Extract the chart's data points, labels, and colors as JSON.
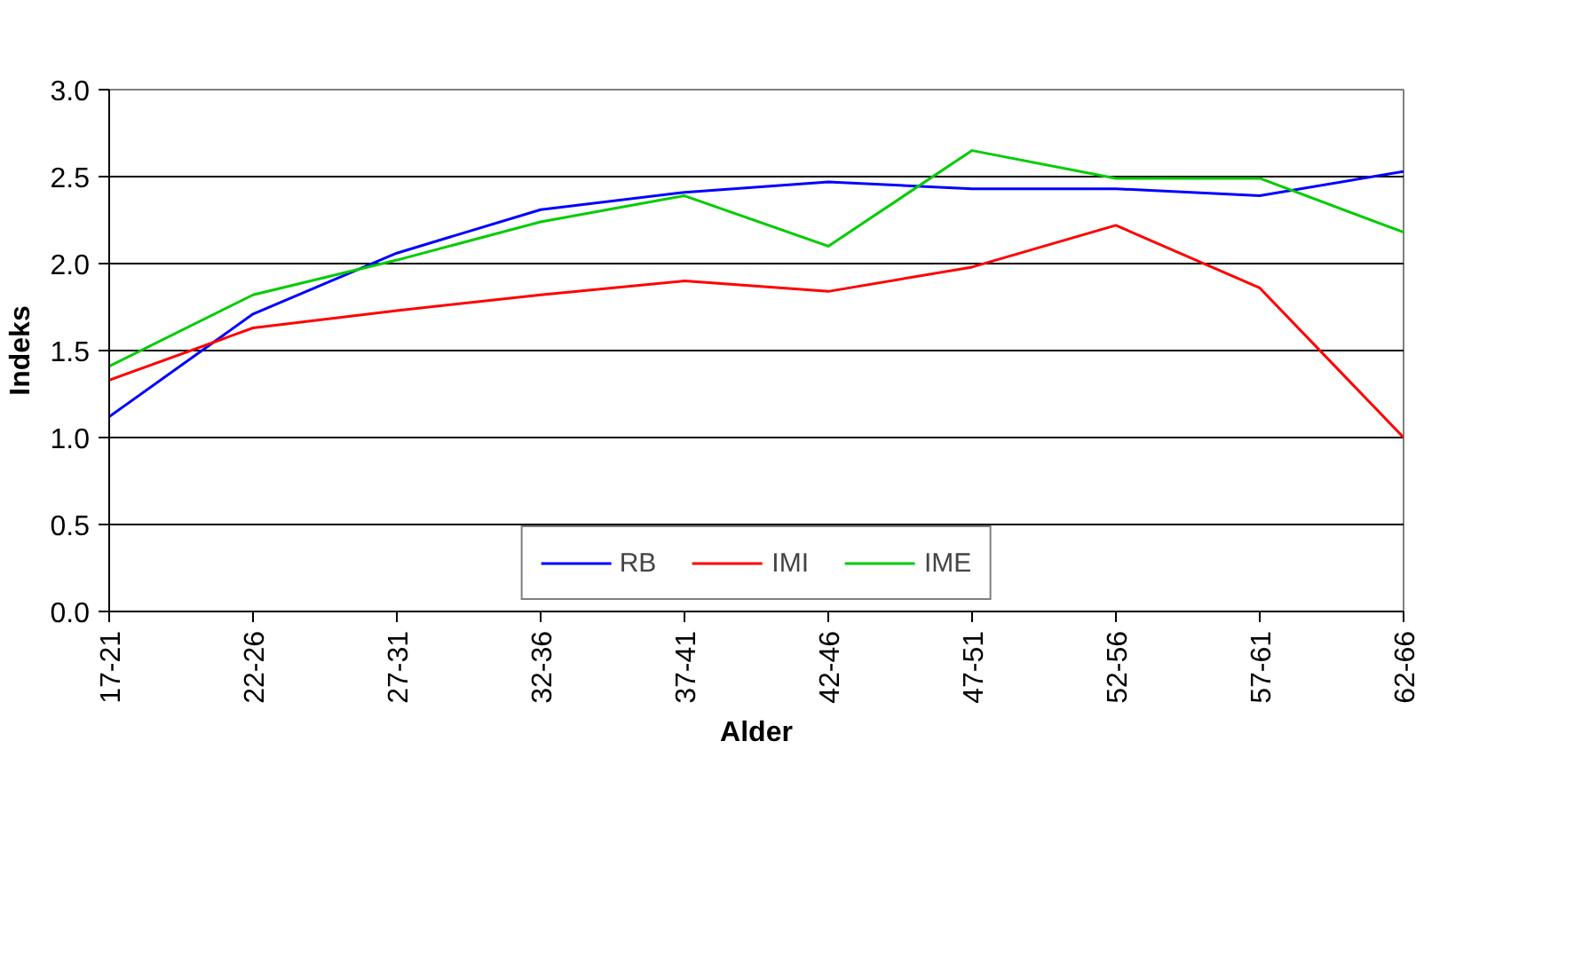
{
  "chart_data": {
    "type": "line",
    "xlabel": "Alder",
    "ylabel": "Indeks",
    "categories": [
      "17-21",
      "22-26",
      "27-31",
      "32-36",
      "37-41",
      "42-46",
      "47-51",
      "52-56",
      "57-61",
      "62-66"
    ],
    "series": [
      {
        "name": "RB",
        "color": "#0000ff",
        "values": [
          1.12,
          1.71,
          2.06,
          2.31,
          2.41,
          2.47,
          2.43,
          2.43,
          2.39,
          2.53
        ]
      },
      {
        "name": "IMI",
        "color": "#ff0000",
        "values": [
          1.33,
          1.63,
          1.73,
          1.82,
          1.9,
          1.84,
          1.98,
          2.22,
          1.86,
          1.0
        ]
      },
      {
        "name": "IME",
        "color": "#00cc00",
        "values": [
          1.41,
          1.82,
          2.02,
          2.24,
          2.39,
          2.1,
          2.65,
          2.49,
          2.49,
          2.18
        ]
      }
    ],
    "ylim": [
      0,
      3
    ],
    "yticks": [
      {
        "value": 0,
        "label": "0.0"
      },
      {
        "value": 0.5,
        "label": "0.5"
      },
      {
        "value": 1,
        "label": "1.0"
      },
      {
        "value": 1.5,
        "label": "1.5"
      },
      {
        "value": 2,
        "label": "2.0"
      },
      {
        "value": 2.5,
        "label": "2.5"
      },
      {
        "value": 3,
        "label": "3.0"
      }
    ],
    "grid": "y",
    "legend": "bottom",
    "marker": "none",
    "line_style": "solid"
  }
}
